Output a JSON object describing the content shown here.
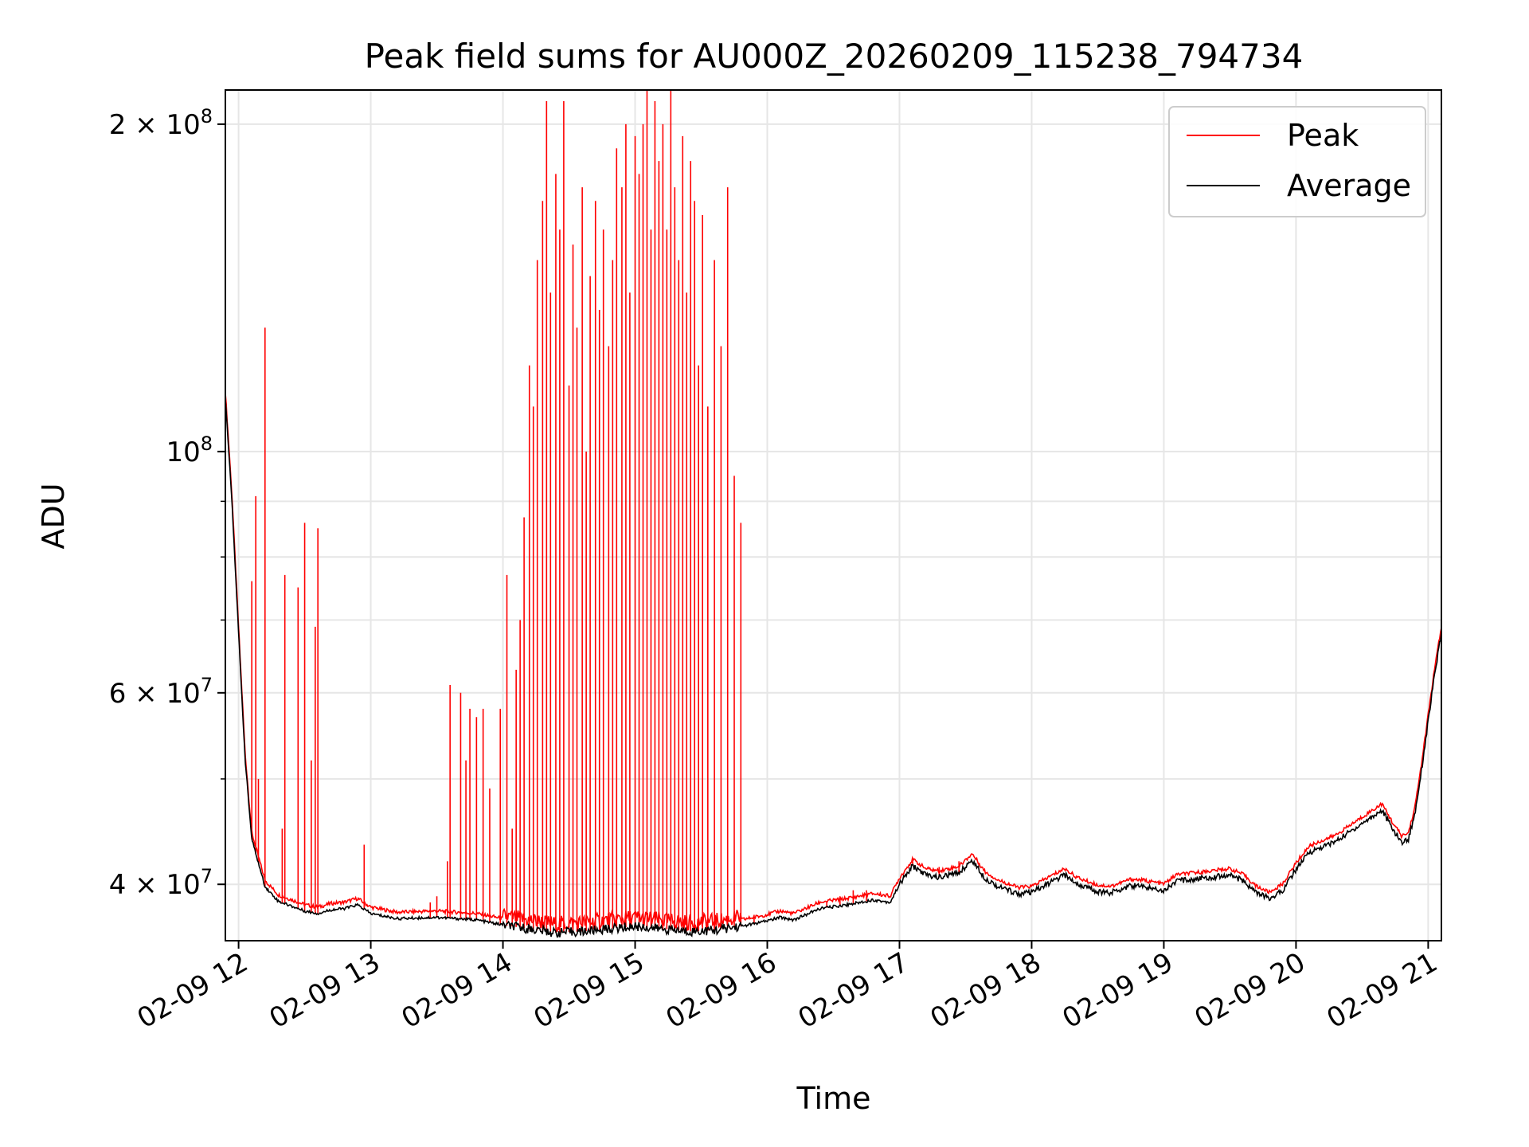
{
  "chart_data": {
    "type": "line",
    "title": "Peak field sums for AU000Z_20260209_115238_794734",
    "xlabel": "Time",
    "ylabel": "ADU",
    "yscale": "log",
    "ylim": [
      35500000,
      215000000
    ],
    "xlim_hours": [
      11.9,
      21.1
    ],
    "grid": true,
    "legend_position": "top-right",
    "x_ticks": [
      {
        "value": 12,
        "label": "02-09 12"
      },
      {
        "value": 13,
        "label": "02-09 13"
      },
      {
        "value": 14,
        "label": "02-09 14"
      },
      {
        "value": 15,
        "label": "02-09 15"
      },
      {
        "value": 16,
        "label": "02-09 16"
      },
      {
        "value": 17,
        "label": "02-09 17"
      },
      {
        "value": 18,
        "label": "02-09 18"
      },
      {
        "value": 19,
        "label": "02-09 19"
      },
      {
        "value": 20,
        "label": "02-09 20"
      },
      {
        "value": 21,
        "label": "02-09 21"
      }
    ],
    "y_major_ticks": [
      {
        "value": 40000000,
        "mantissa": "4",
        "exponent": "7"
      },
      {
        "value": 60000000,
        "mantissa": "6",
        "exponent": "7"
      },
      {
        "value": 100000000,
        "mantissa": "",
        "exponent": "8"
      },
      {
        "value": 200000000,
        "mantissa": "2",
        "exponent": "8"
      }
    ],
    "y_minor_ticks": [
      50000000,
      70000000,
      80000000,
      90000000
    ],
    "series": [
      {
        "name": "Average",
        "color": "#000000",
        "role": "baseline",
        "x": [
          11.9,
          11.95,
          12.0,
          12.05,
          12.1,
          12.2,
          12.3,
          12.4,
          12.5,
          12.6,
          12.7,
          12.8,
          12.9,
          13.0,
          13.2,
          13.5,
          13.8,
          14.0,
          14.2,
          14.4,
          14.6,
          14.8,
          15.0,
          15.2,
          15.4,
          15.6,
          15.8,
          15.95,
          16.1,
          16.2,
          16.4,
          16.6,
          16.8,
          16.93,
          17.0,
          17.1,
          17.2,
          17.3,
          17.45,
          17.55,
          17.65,
          17.75,
          17.9,
          18.0,
          18.1,
          18.25,
          18.35,
          18.5,
          18.6,
          18.75,
          18.85,
          19.0,
          19.1,
          19.2,
          19.35,
          19.5,
          19.6,
          19.7,
          19.8,
          19.9,
          20.0,
          20.1,
          20.3,
          20.5,
          20.65,
          20.73,
          20.8,
          20.85,
          20.9,
          20.95,
          21.0,
          21.05,
          21.1
        ],
        "y": [
          112000000,
          90000000,
          68000000,
          52000000,
          44000000,
          39800000,
          38600000,
          38200000,
          37800000,
          37600000,
          37900000,
          38000000,
          38300000,
          37600000,
          37200000,
          37300000,
          37100000,
          36700000,
          36400000,
          36100000,
          36200000,
          36400000,
          36600000,
          36400000,
          36200000,
          36300000,
          36600000,
          36900000,
          37300000,
          37100000,
          38000000,
          38300000,
          38700000,
          38500000,
          40000000,
          41600000,
          40800000,
          40600000,
          41000000,
          42100000,
          40500000,
          39800000,
          39200000,
          39300000,
          39900000,
          40800000,
          40000000,
          39400000,
          39300000,
          39900000,
          39800000,
          39500000,
          40300000,
          40400000,
          40600000,
          40800000,
          40300000,
          39300000,
          38800000,
          39500000,
          41300000,
          42800000,
          43800000,
          45500000,
          46800000,
          45000000,
          43700000,
          44000000,
          46500000,
          51000000,
          56500000,
          62500000,
          68000000
        ]
      },
      {
        "name": "Peak",
        "color": "#ff0000",
        "role": "spikes",
        "spikes": [
          [
            12.1,
            76000000
          ],
          [
            12.13,
            91000000
          ],
          [
            12.15,
            50000000
          ],
          [
            12.2,
            130000000
          ],
          [
            12.33,
            45000000
          ],
          [
            12.35,
            77000000
          ],
          [
            12.45,
            75000000
          ],
          [
            12.5,
            86000000
          ],
          [
            12.55,
            52000000
          ],
          [
            12.58,
            69000000
          ],
          [
            12.6,
            85000000
          ],
          [
            12.95,
            43500000
          ],
          [
            13.45,
            38500000
          ],
          [
            13.5,
            39000000
          ],
          [
            13.58,
            42000000
          ],
          [
            13.6,
            61000000
          ],
          [
            13.68,
            60000000
          ],
          [
            13.72,
            52000000
          ],
          [
            13.75,
            58000000
          ],
          [
            13.8,
            57000000
          ],
          [
            13.85,
            58000000
          ],
          [
            13.9,
            49000000
          ],
          [
            13.98,
            58000000
          ],
          [
            14.03,
            77000000
          ],
          [
            14.07,
            45000000
          ],
          [
            14.1,
            63000000
          ],
          [
            14.13,
            70000000
          ],
          [
            14.16,
            87000000
          ],
          [
            14.2,
            120000000
          ],
          [
            14.23,
            110000000
          ],
          [
            14.26,
            150000000
          ],
          [
            14.3,
            170000000
          ],
          [
            14.33,
            210000000
          ],
          [
            14.36,
            140000000
          ],
          [
            14.4,
            180000000
          ],
          [
            14.43,
            160000000
          ],
          [
            14.46,
            210000000
          ],
          [
            14.5,
            115000000
          ],
          [
            14.53,
            155000000
          ],
          [
            14.56,
            130000000
          ],
          [
            14.6,
            175000000
          ],
          [
            14.63,
            100000000
          ],
          [
            14.66,
            145000000
          ],
          [
            14.7,
            170000000
          ],
          [
            14.73,
            135000000
          ],
          [
            14.76,
            160000000
          ],
          [
            14.8,
            125000000
          ],
          [
            14.83,
            150000000
          ],
          [
            14.86,
            190000000
          ],
          [
            14.9,
            175000000
          ],
          [
            14.93,
            200000000
          ],
          [
            14.96,
            140000000
          ],
          [
            15.0,
            195000000
          ],
          [
            15.03,
            180000000
          ],
          [
            15.06,
            200000000
          ],
          [
            15.09,
            215000000
          ],
          [
            15.12,
            160000000
          ],
          [
            15.15,
            210000000
          ],
          [
            15.18,
            185000000
          ],
          [
            15.21,
            200000000
          ],
          [
            15.24,
            160000000
          ],
          [
            15.27,
            215000000
          ],
          [
            15.3,
            175000000
          ],
          [
            15.33,
            150000000
          ],
          [
            15.36,
            195000000
          ],
          [
            15.39,
            140000000
          ],
          [
            15.42,
            185000000
          ],
          [
            15.45,
            170000000
          ],
          [
            15.48,
            120000000
          ],
          [
            15.51,
            165000000
          ],
          [
            15.55,
            110000000
          ],
          [
            15.6,
            150000000
          ],
          [
            15.65,
            125000000
          ],
          [
            15.7,
            175000000
          ],
          [
            15.75,
            95000000
          ],
          [
            15.8,
            86000000
          ],
          [
            15.9,
            37500000
          ],
          [
            16.0,
            37000000
          ],
          [
            16.3,
            37500000
          ],
          [
            16.45,
            38500000
          ],
          [
            16.55,
            39000000
          ],
          [
            16.65,
            39500000
          ],
          [
            16.75,
            39500000
          ],
          [
            17.1,
            42000000
          ],
          [
            17.3,
            41500000
          ],
          [
            17.45,
            42000000
          ]
        ]
      }
    ],
    "legend": [
      {
        "label": "Peak",
        "color": "#ff0000"
      },
      {
        "label": "Average",
        "color": "#000000"
      }
    ]
  }
}
